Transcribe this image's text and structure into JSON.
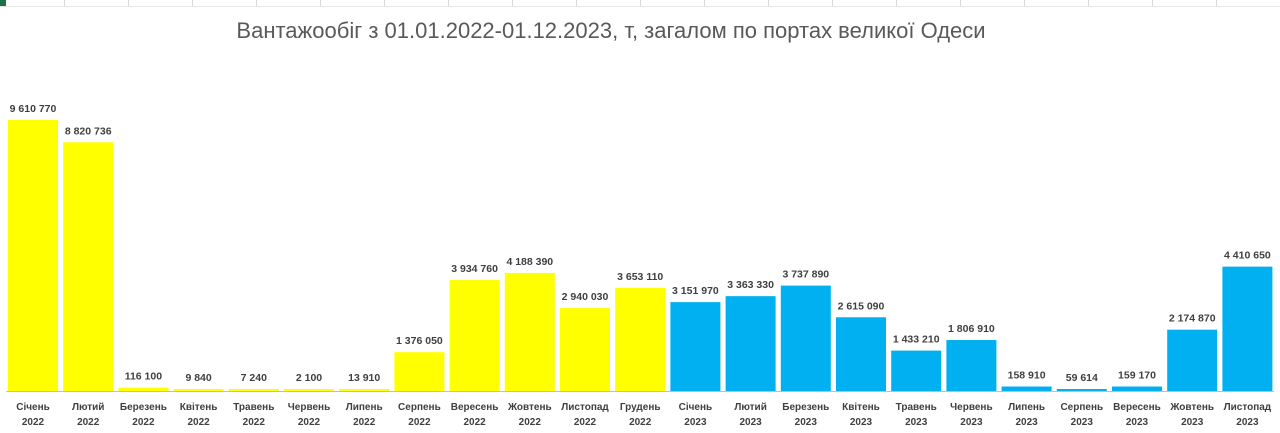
{
  "title": "Вантажообіг з 01.01.2022-01.12.2023, т, загалом по портах великої Одеси",
  "colors": {
    "y2022": "#ffff00",
    "y2023": "#00b0f0",
    "baseline": "#bfbfbf"
  },
  "chart_data": {
    "type": "bar",
    "title": "Вантажообіг з 01.01.2022-01.12.2023, т, загалом по портах великої Одеси",
    "xlabel": "",
    "ylabel": "",
    "ylim": [
      0,
      9700000
    ],
    "grid": false,
    "legend": "none",
    "categories": [
      {
        "month": "Січень",
        "year": "2022"
      },
      {
        "month": "Лютий",
        "year": "2022"
      },
      {
        "month": "Березень",
        "year": "2022"
      },
      {
        "month": "Квітень",
        "year": "2022"
      },
      {
        "month": "Травень",
        "year": "2022"
      },
      {
        "month": "Червень",
        "year": "2022"
      },
      {
        "month": "Липень",
        "year": "2022"
      },
      {
        "month": "Серпень",
        "year": "2022"
      },
      {
        "month": "Вересень",
        "year": "2022"
      },
      {
        "month": "Жовтень",
        "year": "2022"
      },
      {
        "month": "Листопад",
        "year": "2022"
      },
      {
        "month": "Грудень",
        "year": "2022"
      },
      {
        "month": "Січень",
        "year": "2023"
      },
      {
        "month": "Лютий",
        "year": "2023"
      },
      {
        "month": "Березень",
        "year": "2023"
      },
      {
        "month": "Квітень",
        "year": "2023"
      },
      {
        "month": "Травень",
        "year": "2023"
      },
      {
        "month": "Червень",
        "year": "2023"
      },
      {
        "month": "Липень",
        "year": "2023"
      },
      {
        "month": "Серпень",
        "year": "2023"
      },
      {
        "month": "Вересень",
        "year": "2023"
      },
      {
        "month": "Жовтень",
        "year": "2023"
      },
      {
        "month": "Листопад",
        "year": "2023"
      }
    ],
    "values": [
      9610770,
      8820736,
      116100,
      9840,
      7240,
      2100,
      13910,
      1376050,
      3934760,
      4188390,
      2940030,
      3653110,
      3151970,
      3363330,
      3737890,
      2615090,
      1433210,
      1806910,
      158910,
      59614,
      159170,
      2174870,
      4410650
    ],
    "labels": [
      "9 610 770",
      "8 820 736",
      "116 100",
      "9 840",
      "7 240",
      "2 100",
      "13 910",
      "1 376 050",
      "3 934 760",
      "4 188 390",
      "2 940 030",
      "3 653 110",
      "3 151 970",
      "3 363 330",
      "3 737 890",
      "2 615 090",
      "1 433 210",
      "1 806 910",
      "158 910",
      "59 614",
      "159 170",
      "2 174 870",
      "4 410 650"
    ]
  }
}
